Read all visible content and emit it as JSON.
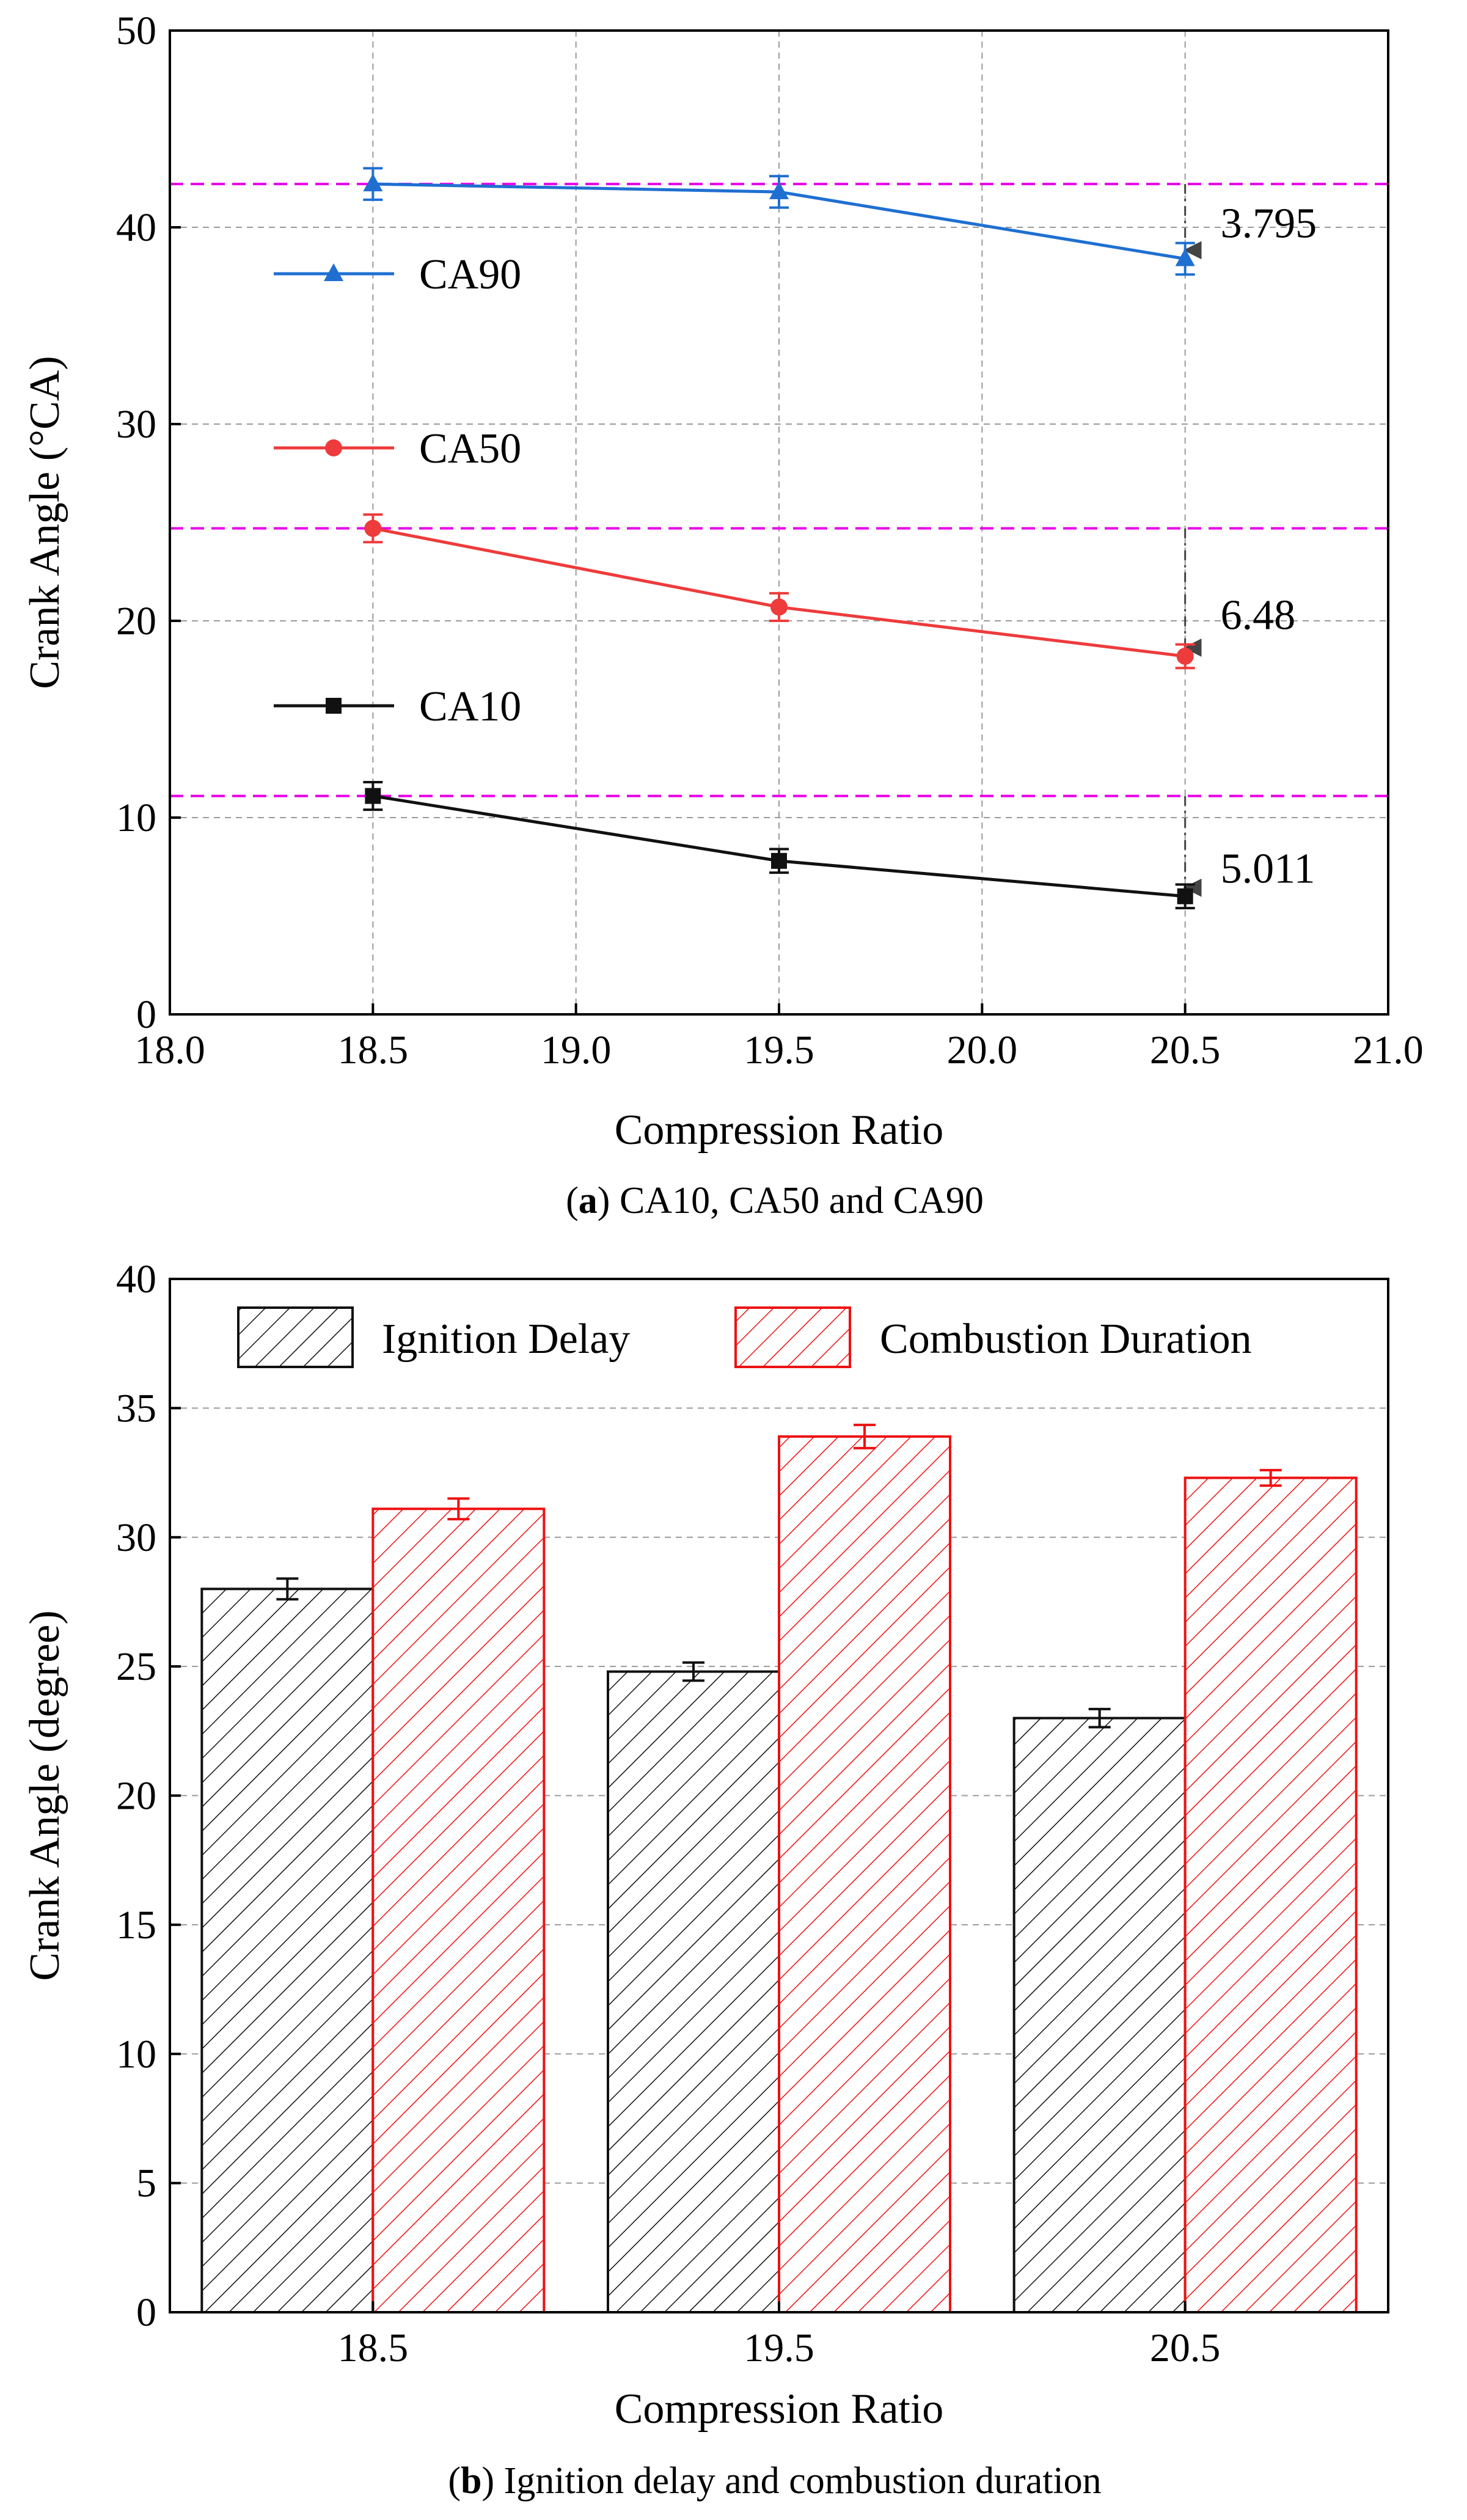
{
  "colors": {
    "ca90": "#1f6fd1",
    "ca50": "#ee3b3b",
    "ca10": "#111111",
    "reference": "#e800e8",
    "ignition": "#111111",
    "combustion": "#ee1111",
    "grid": "#9a9a9a",
    "arrow": "#444444"
  },
  "chart_data": [
    {
      "type": "line",
      "caption": {
        "label": "a",
        "text": " CA10, CA50 and CA90"
      },
      "xlabel": "Compression Ratio",
      "ylabel": "Crank Angle (°CA)",
      "xlim": [
        18.0,
        21.0
      ],
      "ylim": [
        0,
        50
      ],
      "xticks": [
        "18.0",
        "18.5",
        "19.0",
        "19.5",
        "20.0",
        "20.5",
        "21.0"
      ],
      "yticks": [
        "0",
        "10",
        "20",
        "30",
        "40",
        "50"
      ],
      "grid": true,
      "x": [
        18.5,
        19.5,
        20.5
      ],
      "series": [
        {
          "name": "CA90",
          "marker": "triangle",
          "values": [
            42.2,
            41.8,
            38.4
          ],
          "errors": [
            0.8,
            0.8,
            0.8
          ]
        },
        {
          "name": "CA50",
          "marker": "circle",
          "values": [
            24.7,
            20.7,
            18.2
          ],
          "errors": [
            0.7,
            0.7,
            0.6
          ]
        },
        {
          "name": "CA10",
          "marker": "square",
          "values": [
            11.1,
            7.8,
            6.0
          ],
          "errors": [
            0.7,
            0.6,
            0.6
          ]
        }
      ],
      "reference_lines": [
        42.2,
        24.7,
        11.1
      ],
      "annotations": [
        {
          "text": "3.795",
          "x": 20.5,
          "from": 42.2,
          "to": 38.4
        },
        {
          "text": "6.48",
          "x": 20.5,
          "from": 24.7,
          "to": 18.2
        },
        {
          "text": "5.011",
          "x": 20.5,
          "from": 11.1,
          "to": 6.0
        }
      ]
    },
    {
      "type": "bar",
      "caption": {
        "label": "b",
        "text": " Ignition delay and combustion duration"
      },
      "xlabel": "Compression Ratio",
      "ylabel": "Crank Angle (degree)",
      "ylim": [
        0,
        40
      ],
      "yticks": [
        "0",
        "5",
        "10",
        "15",
        "20",
        "25",
        "30",
        "35",
        "40"
      ],
      "grid": true,
      "legend": "top",
      "categories": [
        "18.5",
        "19.5",
        "20.5"
      ],
      "series": [
        {
          "name": "Ignition Delay",
          "values": [
            28.0,
            24.8,
            23.0
          ],
          "errors": [
            0.4,
            0.35,
            0.35
          ]
        },
        {
          "name": "Combustion Duration",
          "values": [
            31.1,
            33.9,
            32.3
          ],
          "errors": [
            0.4,
            0.45,
            0.3
          ]
        }
      ]
    }
  ]
}
